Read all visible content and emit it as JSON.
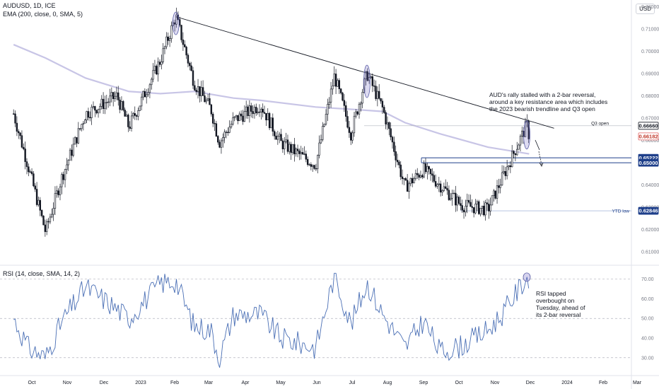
{
  "header": {
    "symbol": "AUDUSD, 1D, ICE",
    "ema_legend": "EMA (200, close, 0, SMA, 5)",
    "rsi_legend": "RSI (14, close, SMA, 14, 2)",
    "currency": "USD"
  },
  "annotations": {
    "price_note": [
      "AUD's rally stalled with a 2-bar reversal,",
      "around a key resistance area which includes",
      "the 2023 bearish trendline and Q3 open"
    ],
    "rsi_note": [
      "RSI tapped",
      "overbought on",
      "Tuesday, ahead of",
      "its 2-bar reversal"
    ]
  },
  "levels": [
    {
      "name": "Q3 open",
      "value": 0.6666,
      "label": "0.66660"
    },
    {
      "name": "last",
      "value": 0.66182,
      "label": "0.66182"
    },
    {
      "name": "",
      "value": 0.65222,
      "label": "0.65222"
    },
    {
      "name": "",
      "value": 0.65,
      "label": "0.65000"
    },
    {
      "name": "YTD low",
      "value": 0.62846,
      "label": "0.62846"
    }
  ],
  "colors": {
    "up": "#26a69a",
    "candle": "#131722",
    "ema": "#c8c5e6",
    "rsi": "#4a6fb5",
    "levelBlue": "#1e3f8a",
    "lastRed": "#e06060"
  },
  "chart_data": [
    {
      "type": "candlestick",
      "title": "AUDUSD, 1D, ICE",
      "ylabel": "USD",
      "ylim": [
        0.605,
        0.723
      ],
      "y_ticks": [
        "0.61000",
        "0.62000",
        "0.63000",
        "0.64000",
        "0.65000",
        "0.66000",
        "0.67000",
        "0.68000",
        "0.69000",
        "0.70000",
        "0.71000",
        "0.72000"
      ],
      "x_ticks": [
        "Oct",
        "Nov",
        "Dec",
        "2023",
        "Feb",
        "Mar",
        "Apr",
        "May",
        "Jun",
        "Jul",
        "Aug",
        "Sep",
        "Oct",
        "Nov",
        "Dec",
        "2024",
        "Feb",
        "Mar"
      ],
      "grid": false,
      "close_path": [
        {
          "date": "2022-09-15",
          "close": 0.672
        },
        {
          "date": "2022-09-28",
          "close": 0.648
        },
        {
          "date": "2022-10-13",
          "close": 0.619
        },
        {
          "date": "2022-10-27",
          "close": 0.643
        },
        {
          "date": "2022-11-16",
          "close": 0.672
        },
        {
          "date": "2022-12-12",
          "close": 0.68
        },
        {
          "date": "2022-12-22",
          "close": 0.666
        },
        {
          "date": "2023-01-19",
          "close": 0.696
        },
        {
          "date": "2023-02-02",
          "close": 0.7157
        },
        {
          "date": "2023-02-17",
          "close": 0.686
        },
        {
          "date": "2023-03-03",
          "close": 0.674
        },
        {
          "date": "2023-03-10",
          "close": 0.659
        },
        {
          "date": "2023-03-22",
          "close": 0.669
        },
        {
          "date": "2023-04-14",
          "close": 0.676
        },
        {
          "date": "2023-05-01",
          "close": 0.659
        },
        {
          "date": "2023-05-31",
          "close": 0.649
        },
        {
          "date": "2023-06-16",
          "close": 0.689
        },
        {
          "date": "2023-06-30",
          "close": 0.663
        },
        {
          "date": "2023-07-14",
          "close": 0.69
        },
        {
          "date": "2023-07-28",
          "close": 0.674
        },
        {
          "date": "2023-08-16",
          "close": 0.639
        },
        {
          "date": "2023-09-01",
          "close": 0.647
        },
        {
          "date": "2023-10-03",
          "close": 0.631
        },
        {
          "date": "2023-10-26",
          "close": 0.629
        },
        {
          "date": "2023-11-07",
          "close": 0.643
        },
        {
          "date": "2023-11-28",
          "close": 0.667
        },
        {
          "date": "2023-11-30",
          "close": 0.6618
        }
      ],
      "series": [
        {
          "name": "EMA (200, close, 0, SMA, 5)",
          "points": [
            {
              "date": "2022-09-15",
              "value": 0.703
            },
            {
              "date": "2022-10-13",
              "value": 0.697
            },
            {
              "date": "2022-11-16",
              "value": 0.688
            },
            {
              "date": "2022-12-22",
              "value": 0.682
            },
            {
              "date": "2023-01-19",
              "value": 0.681
            },
            {
              "date": "2023-02-17",
              "value": 0.682
            },
            {
              "date": "2023-03-22",
              "value": 0.679
            },
            {
              "date": "2023-04-14",
              "value": 0.678
            },
            {
              "date": "2023-05-31",
              "value": 0.675
            },
            {
              "date": "2023-06-30",
              "value": 0.674
            },
            {
              "date": "2023-07-28",
              "value": 0.673
            },
            {
              "date": "2023-08-16",
              "value": 0.668
            },
            {
              "date": "2023-09-15",
              "value": 0.663
            },
            {
              "date": "2023-10-26",
              "value": 0.657
            },
            {
              "date": "2023-11-30",
              "value": 0.654
            }
          ]
        }
      ],
      "trendline": [
        {
          "date": "2023-02-02",
          "value": 0.7155
        },
        {
          "date": "2023-12-21",
          "value": 0.6655
        }
      ]
    },
    {
      "type": "line",
      "title": "RSI (14, close, SMA, 14, 2)",
      "ylim": [
        22,
        76
      ],
      "y_ticks": [
        "30.00",
        "40.00",
        "50.00",
        "60.00",
        "70.00"
      ],
      "reference_lines": [
        30,
        50,
        70
      ],
      "series": [
        {
          "name": "",
          "points": [
            {
              "date": "2022-09-15",
              "value": 50
            },
            {
              "date": "2022-09-28",
              "value": 35
            },
            {
              "date": "2022-10-13",
              "value": 30
            },
            {
              "date": "2022-10-27",
              "value": 48
            },
            {
              "date": "2022-11-16",
              "value": 66
            },
            {
              "date": "2022-12-05",
              "value": 58
            },
            {
              "date": "2022-12-22",
              "value": 50
            },
            {
              "date": "2023-01-19",
              "value": 68
            },
            {
              "date": "2023-02-02",
              "value": 69
            },
            {
              "date": "2023-02-17",
              "value": 46
            },
            {
              "date": "2023-03-03",
              "value": 44
            },
            {
              "date": "2023-03-10",
              "value": 30
            },
            {
              "date": "2023-03-22",
              "value": 52
            },
            {
              "date": "2023-04-14",
              "value": 52
            },
            {
              "date": "2023-05-01",
              "value": 40
            },
            {
              "date": "2023-05-31",
              "value": 35
            },
            {
              "date": "2023-06-16",
              "value": 72
            },
            {
              "date": "2023-06-30",
              "value": 47
            },
            {
              "date": "2023-07-14",
              "value": 68
            },
            {
              "date": "2023-07-28",
              "value": 52
            },
            {
              "date": "2023-08-16",
              "value": 35
            },
            {
              "date": "2023-09-01",
              "value": 49
            },
            {
              "date": "2023-09-15",
              "value": 33
            },
            {
              "date": "2023-10-03",
              "value": 36
            },
            {
              "date": "2023-10-26",
              "value": 44
            },
            {
              "date": "2023-11-07",
              "value": 52
            },
            {
              "date": "2023-11-28",
              "value": 71
            },
            {
              "date": "2023-11-30",
              "value": 66
            }
          ]
        }
      ]
    }
  ]
}
